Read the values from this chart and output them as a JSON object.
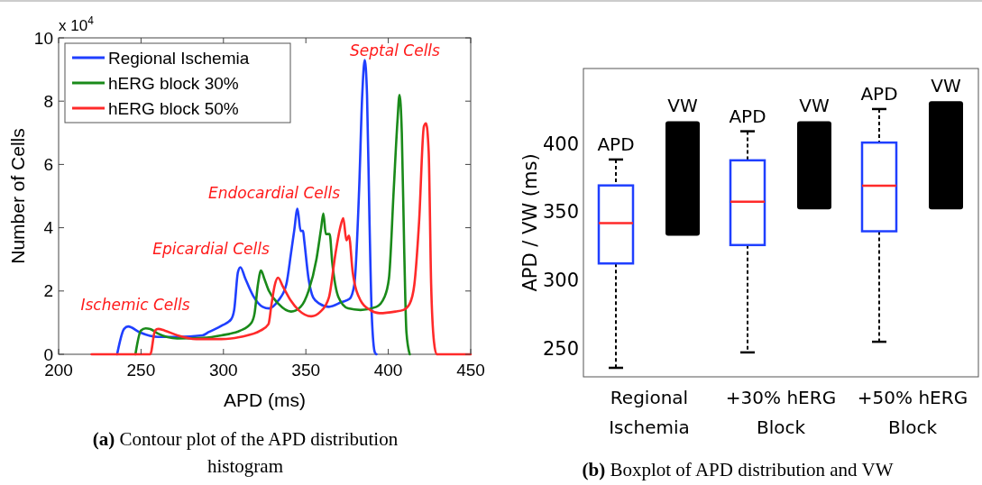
{
  "chart_data": [
    {
      "type": "line",
      "title": "(a) Contour plot of the APD distribution histogram",
      "xlabel": "APD (ms)",
      "ylabel": "Number of Cells",
      "xlim": [
        200,
        450
      ],
      "xticks": [
        200,
        250,
        300,
        350,
        400,
        450
      ],
      "ylim": [
        0,
        10
      ],
      "yticks": [
        0,
        2,
        4,
        6,
        8,
        10
      ],
      "grid": false,
      "legend": "top left",
      "line_style": "solid",
      "marker": "none",
      "annotations": [
        "x 10$^{4}$",
        "Ischemic Cells",
        "Epicardial Cells",
        "Endocardial Cells",
        "Septal Cells"
      ],
      "series": [
        {
          "name": "Regional Ischemia",
          "color": "#1f3fff",
          "x": [
            235.5,
            239.7,
            242.2,
            249,
            260.4,
            272,
            287.3,
            291,
            298.8,
            304.6,
            306.5,
            308.8,
            310.3,
            313.2,
            318,
            323.8,
            327.6,
            333.3,
            338.1,
            341,
            342.9,
            344.9,
            346.8,
            348.3,
            349,
            351.6,
            354.4,
            358.3,
            364,
            371.7,
            376.5,
            379.4,
            382.3,
            384.2,
            385.7,
            387.1,
            388.6,
            390,
            391.9,
            392.8
          ],
          "values": [
            0,
            0.8,
            0.88,
            0.7,
            0.55,
            0.55,
            0.6,
            0.7,
            0.9,
            1.1,
            1.4,
            2.6,
            2.75,
            2.4,
            1.85,
            1.5,
            1.45,
            1.7,
            2.2,
            3.2,
            3.9,
            4.6,
            3.9,
            3.9,
            3.6,
            2.4,
            1.8,
            1.6,
            1.5,
            1.65,
            1.75,
            2.2,
            5.2,
            8.2,
            9.3,
            8.2,
            4.2,
            1.2,
            0.05,
            0
          ]
        },
        {
          "name": "hERG block 30%",
          "color": "#1a8a1a",
          "x": [
            246.6,
            249.9,
            252.8,
            255.6,
            260.4,
            272,
            287.3,
            298.8,
            310.3,
            317,
            318.9,
            320.9,
            322.8,
            324.7,
            327.6,
            333.3,
            341,
            346.8,
            351.6,
            356.4,
            359.3,
            360.6,
            362.1,
            364.4,
            366,
            369.8,
            375.6,
            383.2,
            392.8,
            397.6,
            400.4,
            403.3,
            405.6,
            406.8,
            408.2,
            409.7,
            411,
            413
          ],
          "values": [
            0,
            0.75,
            0.82,
            0.8,
            0.65,
            0.5,
            0.52,
            0.6,
            0.75,
            1,
            1.3,
            2.2,
            2.65,
            2.4,
            2,
            1.6,
            1.35,
            1.5,
            2,
            3,
            4,
            4.45,
            3.8,
            3.8,
            2.9,
            1.8,
            1.45,
            1.4,
            1.5,
            1.8,
            2.4,
            5.2,
            7.4,
            8.2,
            7,
            3.2,
            0.7,
            0
          ]
        },
        {
          "name": "hERG block 50%",
          "color": "#ff2a2a",
          "x": [
            220,
            255.6,
            258.5,
            260.4,
            264.3,
            272,
            283.5,
            298.8,
            310.3,
            322.5,
            327.3,
            329.2,
            331.2,
            333.1,
            336,
            340.8,
            345.5,
            353.2,
            358.9,
            364,
            368,
            370.8,
            372.7,
            374.6,
            376.1,
            378.4,
            383.2,
            389,
            394.7,
            404.3,
            409.1,
            413,
            415.8,
            418.7,
            421.6,
            422.9,
            424.5,
            426,
            427.7,
            429.3,
            450
          ],
          "values": [
            0,
            0,
            0.75,
            0.8,
            0.75,
            0.6,
            0.48,
            0.48,
            0.55,
            0.75,
            0.95,
            1.6,
            2.2,
            2.42,
            2.15,
            1.7,
            1.4,
            1.2,
            1.35,
            1.8,
            3.2,
            4,
            4.3,
            3.6,
            3.75,
            2.6,
            1.7,
            1.4,
            1.3,
            1.35,
            1.4,
            1.6,
            2.2,
            4.2,
            7.2,
            7.3,
            6.4,
            2.2,
            0.4,
            0,
            0
          ]
        }
      ]
    },
    {
      "type": "box",
      "title": "(b) Boxplot of APD distribution and VW",
      "ylabel": "APD / VW (ms)",
      "categories": [
        "Regional Ischemia",
        "+30% hERG Block",
        "+50% hERG Block"
      ],
      "ylim": [
        229,
        455
      ],
      "yticks": [
        250,
        300,
        350,
        400
      ],
      "grid": false,
      "series": [
        {
          "name": "APD",
          "type": "box",
          "color": "#1f3fff",
          "boxes": [
            {
              "low": 235.6,
              "q1": 312.1,
              "median": 341.7,
              "q3": 369.3,
              "high": 388.3
            },
            {
              "low": 246.9,
              "q1": 325.6,
              "median": 357.4,
              "q3": 387.7,
              "high": 409
            },
            {
              "low": 254.7,
              "q1": 335.7,
              "median": 369.1,
              "q3": 400.7,
              "high": 425.3
            }
          ]
        },
        {
          "name": "VW",
          "type": "bar",
          "color": "#000000",
          "base": [
            332.5,
            351.8,
            351.8
          ],
          "values": [
            83.9,
            64.6,
            79.2
          ]
        }
      ]
    }
  ]
}
